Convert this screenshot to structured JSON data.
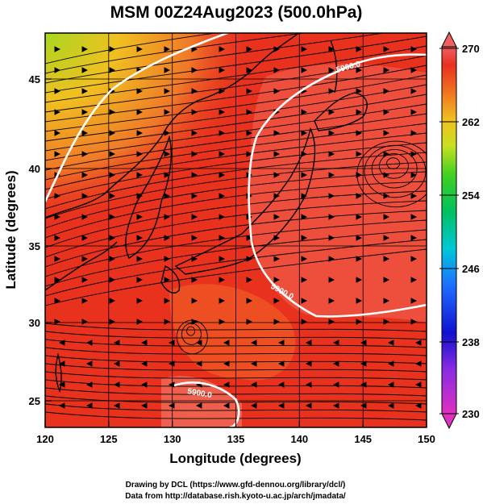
{
  "title": "MSM 00Z24Aug2023 (500.0hPa)",
  "x_axis": {
    "label": "Longitude (degrees)",
    "ticks": [
      "120",
      "125",
      "130",
      "135",
      "140",
      "145",
      "150"
    ],
    "range": [
      120,
      150
    ]
  },
  "y_axis": {
    "label": "Latitude  (degrees)",
    "ticks": [
      "25",
      "30",
      "35",
      "40",
      "45"
    ],
    "range": [
      22.5,
      47.8
    ]
  },
  "colorbar": {
    "ticks": [
      "270",
      "262",
      "254",
      "246",
      "238",
      "230"
    ],
    "range": [
      230,
      270
    ],
    "colors": [
      "#e030c0",
      "#8a2be2",
      "#1010d0",
      "#1e6fff",
      "#00c8d8",
      "#00c060",
      "#40d020",
      "#c8e020",
      "#f0c020",
      "#f07020",
      "#e83020",
      "#f06060"
    ]
  },
  "contours": [
    {
      "label": "5900.0"
    },
    {
      "label": "5900.0"
    },
    {
      "label": "5900.0"
    }
  ],
  "credits": {
    "line1": "Drawing by DCL (https://www.gfd-dennou.org/library/dcl/)",
    "line2": "Data from http://database.rish.kyoto-u.ac.jp/arch/jmadata/"
  },
  "field_colors": {
    "base": "#e8321e",
    "warm": "#f05a3c",
    "cold_corner": "#a8d820",
    "contour": "#ffffff",
    "streamline": "#000000"
  }
}
